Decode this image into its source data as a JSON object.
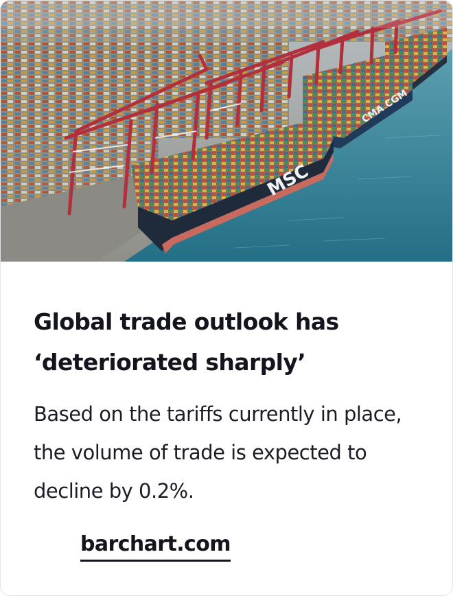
{
  "card": {
    "image": {
      "alt": "Aerial view of a container port with cranes and cargo ships"
    },
    "headline": "Global trade outlook has ‘deteriorated sharply’",
    "summary": "Based on the tariffs currently in place, the volume of trade is expected to decline by 0.2%.",
    "source": "barchart.com",
    "ship_labels": {
      "front": "MSC",
      "middle": "CMA CGM"
    }
  },
  "colors": {
    "text": "#14141e",
    "crane_red": "#b2303c",
    "sea": "#2f7e92",
    "hull": "#1f2b3a"
  }
}
